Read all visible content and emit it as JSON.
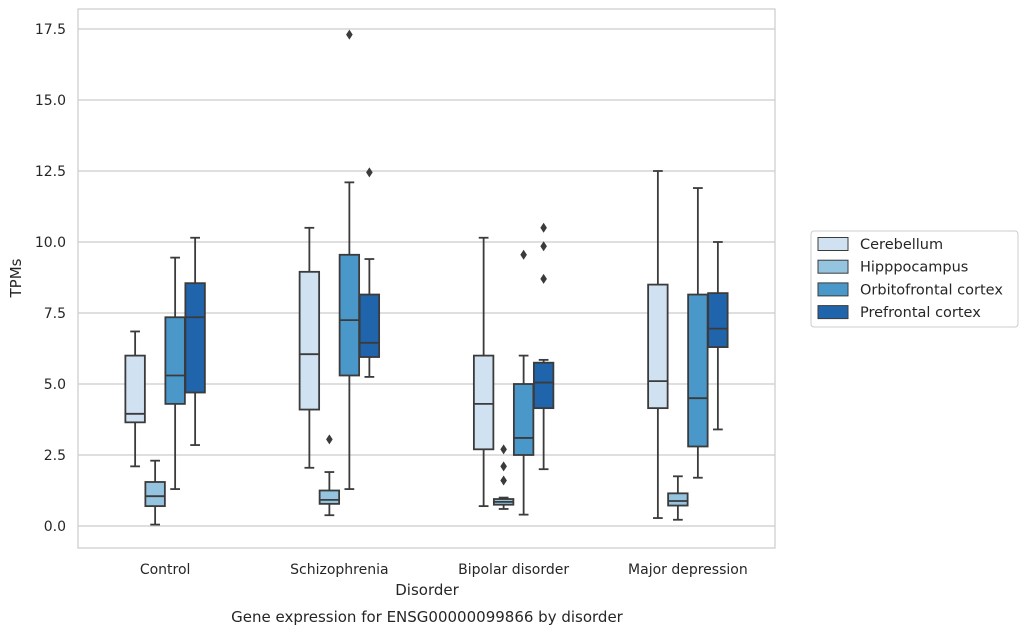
{
  "chart_data": {
    "type": "box",
    "title": "Gene expression for ENSG00000099866 by disorder",
    "xlabel": "Disorder",
    "ylabel": "TPMs",
    "ylim": [
      -0.8,
      18.2
    ],
    "yticks": [
      "0.0",
      "2.5",
      "5.0",
      "7.5",
      "10.0",
      "12.5",
      "15.0",
      "17.5"
    ],
    "grid": "horizontal",
    "legend_position": "right",
    "categories": [
      "Control",
      "Schizophrenia",
      "Bipolar disorder",
      "Major depression"
    ],
    "series": [
      {
        "name": "Cerebellum",
        "color": "#d0e1f2",
        "boxes": [
          {
            "whislo": 2.1,
            "q1": 3.65,
            "med": 3.95,
            "q3": 6.0,
            "whishi": 6.85,
            "fliers": []
          },
          {
            "whislo": 2.05,
            "q1": 4.1,
            "med": 6.05,
            "q3": 8.95,
            "whishi": 10.5,
            "fliers": []
          },
          {
            "whislo": 0.7,
            "q1": 2.7,
            "med": 4.3,
            "q3": 6.0,
            "whishi": 10.15,
            "fliers": []
          },
          {
            "whislo": 0.28,
            "q1": 4.15,
            "med": 5.1,
            "q3": 8.5,
            "whishi": 12.5,
            "fliers": []
          }
        ]
      },
      {
        "name": "Hipppocampus",
        "color": "#94c4df",
        "boxes": [
          {
            "whislo": 0.05,
            "q1": 0.7,
            "med": 1.05,
            "q3": 1.55,
            "whishi": 2.3,
            "fliers": []
          },
          {
            "whislo": 0.38,
            "q1": 0.78,
            "med": 0.92,
            "q3": 1.25,
            "whishi": 1.9,
            "fliers": [
              3.05
            ]
          },
          {
            "whislo": 0.6,
            "q1": 0.75,
            "med": 0.85,
            "q3": 0.95,
            "whishi": 1.0,
            "fliers": [
              1.6,
              2.1,
              2.7
            ]
          },
          {
            "whislo": 0.22,
            "q1": 0.72,
            "med": 0.88,
            "q3": 1.15,
            "whishi": 1.75,
            "fliers": []
          }
        ]
      },
      {
        "name": "Orbitofrontal cortex",
        "color": "#4a98c9",
        "boxes": [
          {
            "whislo": 1.3,
            "q1": 4.3,
            "med": 5.3,
            "q3": 7.35,
            "whishi": 9.45,
            "fliers": []
          },
          {
            "whislo": 1.3,
            "q1": 5.3,
            "med": 7.25,
            "q3": 9.55,
            "whishi": 12.1,
            "fliers": [
              17.3
            ]
          },
          {
            "whislo": 0.4,
            "q1": 2.5,
            "med": 3.1,
            "q3": 5.0,
            "whishi": 6.0,
            "fliers": [
              9.55
            ]
          },
          {
            "whislo": 1.7,
            "q1": 2.8,
            "med": 4.5,
            "q3": 8.15,
            "whishi": 11.9,
            "fliers": []
          }
        ]
      },
      {
        "name": "Prefrontal cortex",
        "color": "#2064ac",
        "boxes": [
          {
            "whislo": 2.85,
            "q1": 4.7,
            "med": 7.35,
            "q3": 8.55,
            "whishi": 10.15,
            "fliers": []
          },
          {
            "whislo": 5.25,
            "q1": 5.95,
            "med": 6.45,
            "q3": 8.15,
            "whishi": 9.4,
            "fliers": [
              12.45
            ]
          },
          {
            "whislo": 2.0,
            "q1": 4.15,
            "med": 5.05,
            "q3": 5.75,
            "whishi": 5.85,
            "fliers": [
              8.7,
              9.85,
              10.5
            ]
          },
          {
            "whislo": 3.4,
            "q1": 6.3,
            "med": 6.95,
            "q3": 8.2,
            "whishi": 10.0,
            "fliers": []
          }
        ]
      }
    ]
  }
}
